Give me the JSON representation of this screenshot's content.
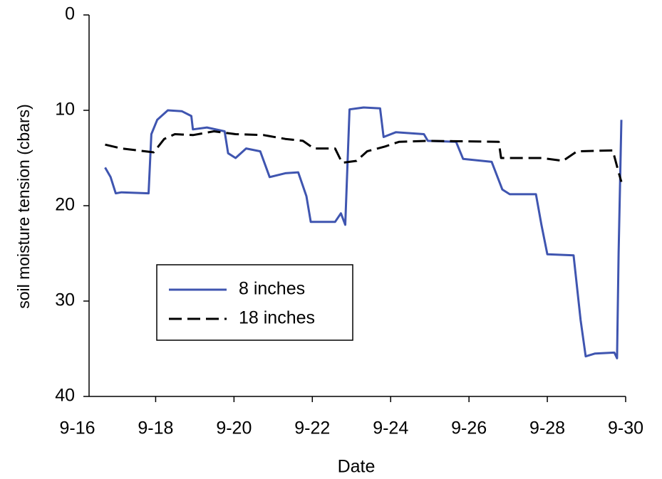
{
  "chart_data": {
    "type": "line",
    "x_label": "Date",
    "y_label": "soil moisture tension (cbars)",
    "xlim": [
      16.3,
      30
    ],
    "xticks": [
      {
        "value": 16,
        "label": "9-16"
      },
      {
        "value": 18,
        "label": "9-18"
      },
      {
        "value": 20,
        "label": "9-20"
      },
      {
        "value": 22,
        "label": "9-22"
      },
      {
        "value": 24,
        "label": "9-24"
      },
      {
        "value": 26,
        "label": "9-26"
      },
      {
        "value": 28,
        "label": "9-28"
      },
      {
        "value": 30,
        "label": "9-30"
      }
    ],
    "ylim": [
      0,
      40
    ],
    "yticks": [
      0,
      10,
      20,
      30,
      40
    ],
    "y_reversed": true,
    "grid": false,
    "legend": "lower-left",
    "series": [
      {
        "name": "8 inches",
        "color": "#3f55b0",
        "dash": "solid",
        "x": [
          16.71,
          16.85,
          16.98,
          17.13,
          17.82,
          17.89,
          18.04,
          18.31,
          18.67,
          18.91,
          18.95,
          19.31,
          19.76,
          19.85,
          20.04,
          20.31,
          20.67,
          20.91,
          21.31,
          21.64,
          21.85,
          21.96,
          22.58,
          22.73,
          22.84,
          22.95,
          23.31,
          23.73,
          23.82,
          24.13,
          24.85,
          24.95,
          25.67,
          25.85,
          26.58,
          26.85,
          27.04,
          27.71,
          27.85,
          28.0,
          28.67,
          28.85,
          28.98,
          29.22,
          29.71,
          29.78,
          29.82,
          29.89
        ],
        "values": [
          16,
          17,
          18.7,
          18.6,
          18.7,
          12.5,
          11,
          10,
          10.1,
          10.6,
          12,
          11.8,
          12.2,
          14.5,
          15,
          14,
          14.3,
          17,
          16.6,
          16.5,
          19,
          21.7,
          21.7,
          20.8,
          22,
          9.9,
          9.7,
          9.8,
          12.8,
          12.3,
          12.5,
          13.2,
          13.3,
          15.1,
          15.4,
          18.3,
          18.8,
          18.8,
          22,
          25.1,
          25.2,
          32,
          35.8,
          35.5,
          35.4,
          36,
          25,
          11
        ]
      },
      {
        "name": "18 inches",
        "color": "#000000",
        "dash": "dashed",
        "x": [
          16.71,
          17.13,
          17.95,
          18.22,
          18.49,
          18.95,
          19.49,
          20.04,
          20.76,
          21.31,
          21.76,
          22.04,
          22.58,
          22.76,
          23.13,
          23.4,
          23.85,
          24.22,
          24.95,
          26.76,
          26.82,
          27.85,
          28.4,
          28.76,
          29.67,
          29.82,
          29.89
        ],
        "values": [
          13.6,
          14,
          14.4,
          13,
          12.5,
          12.6,
          12.2,
          12.5,
          12.6,
          13,
          13.2,
          14,
          14,
          15.5,
          15.3,
          14.3,
          13.8,
          13.3,
          13.2,
          13.3,
          15,
          15,
          15.3,
          14.3,
          14.2,
          16.5,
          17.5
        ]
      }
    ]
  }
}
